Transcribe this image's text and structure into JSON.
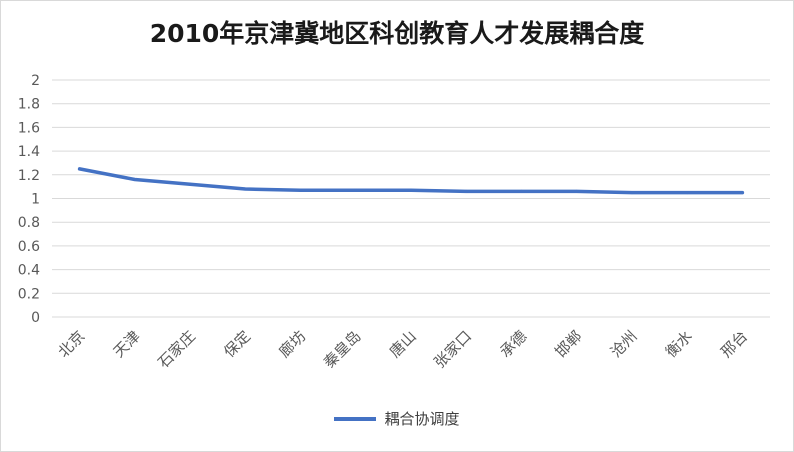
{
  "chart_data": {
    "type": "line",
    "title": "2010年京津冀地区科创教育人才发展耦合度",
    "xlabel": "",
    "ylabel": "",
    "ylim": [
      0,
      2
    ],
    "yticks": [
      "0",
      "0.2",
      "0.4",
      "0.6",
      "0.8",
      "1",
      "1.2",
      "1.4",
      "1.6",
      "1.8",
      "2"
    ],
    "categories": [
      "北京",
      "天津",
      "石家庄",
      "保定",
      "廊坊",
      "秦皇岛",
      "唐山",
      "张家口",
      "承德",
      "邯郸",
      "沧州",
      "衡水",
      "邢台"
    ],
    "series": [
      {
        "name": "耦合协调度",
        "color": "#4472c4",
        "values": [
          1.25,
          1.16,
          1.12,
          1.08,
          1.07,
          1.07,
          1.07,
          1.06,
          1.06,
          1.06,
          1.05,
          1.05,
          1.05
        ]
      }
    ],
    "grid": true,
    "legend": "bottom"
  }
}
